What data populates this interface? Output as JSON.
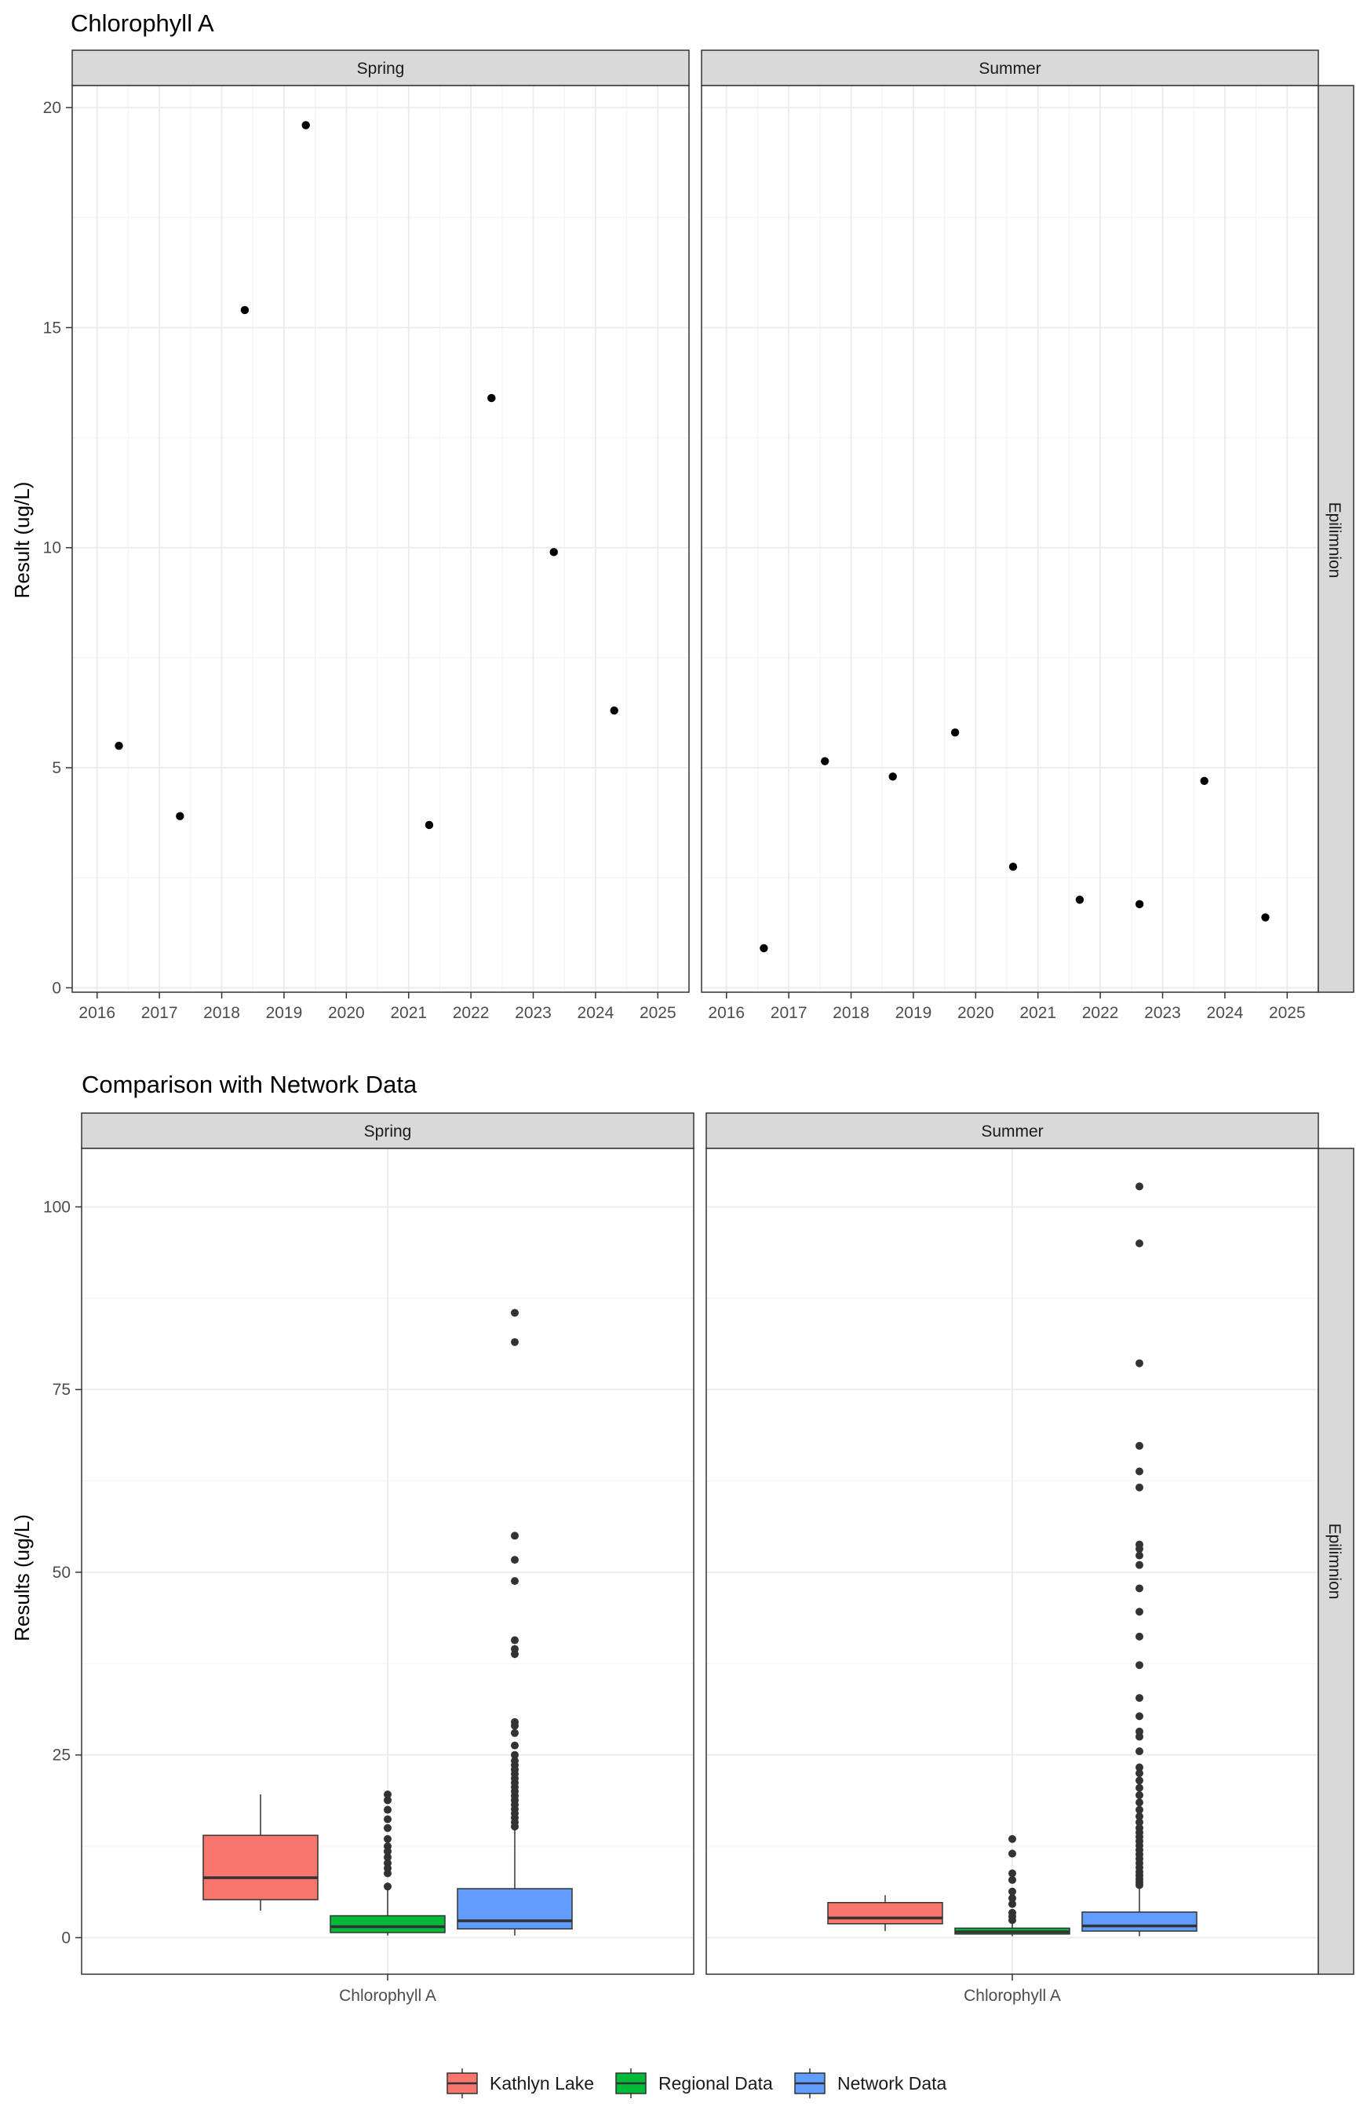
{
  "chart_data": [
    {
      "type": "scatter",
      "title": "Chlorophyll A",
      "ylabel": "Result (ug/L)",
      "xlabel": "",
      "x_ticks": [
        "2016",
        "2017",
        "2018",
        "2019",
        "2020",
        "2021",
        "2022",
        "2023",
        "2024",
        "2025"
      ],
      "xlim": [
        2015.6,
        2025.5
      ],
      "ylim": [
        -0.1,
        20.5
      ],
      "y_ticks": [
        0,
        5,
        10,
        15,
        20
      ],
      "grid": true,
      "facet_row": "Epilimnion",
      "panels": [
        {
          "facet": "Spring",
          "points": [
            {
              "x": 2016.35,
              "y": 5.5
            },
            {
              "x": 2017.33,
              "y": 3.9
            },
            {
              "x": 2018.37,
              "y": 15.4
            },
            {
              "x": 2019.35,
              "y": 19.6
            },
            {
              "x": 2021.33,
              "y": 3.7
            },
            {
              "x": 2022.33,
              "y": 13.4
            },
            {
              "x": 2023.33,
              "y": 9.9
            },
            {
              "x": 2024.3,
              "y": 6.3
            }
          ]
        },
        {
          "facet": "Summer",
          "points": [
            {
              "x": 2016.6,
              "y": 0.9
            },
            {
              "x": 2017.58,
              "y": 5.15
            },
            {
              "x": 2018.67,
              "y": 4.8
            },
            {
              "x": 2019.67,
              "y": 5.8
            },
            {
              "x": 2020.6,
              "y": 2.75
            },
            {
              "x": 2021.67,
              "y": 2.0
            },
            {
              "x": 2022.63,
              "y": 1.9
            },
            {
              "x": 2023.67,
              "y": 4.7
            },
            {
              "x": 2024.65,
              "y": 1.6
            }
          ]
        }
      ]
    },
    {
      "type": "box",
      "title": "Comparison with Network Data",
      "ylabel": "Results (ug/L)",
      "categories": [
        "Chlorophyll A"
      ],
      "ylim": [
        -5,
        108
      ],
      "y_ticks": [
        0,
        25,
        50,
        75,
        100
      ],
      "grid": true,
      "facet_row": "Epilimnion",
      "legend": {
        "position": "bottom",
        "entries": [
          {
            "name": "Kathlyn Lake",
            "color": "#F8766D"
          },
          {
            "name": "Regional Data",
            "color": "#00BA38"
          },
          {
            "name": "Network Data",
            "color": "#619CFF"
          }
        ]
      },
      "panels": [
        {
          "facet": "Spring",
          "boxes": [
            {
              "series": "Kathlyn Lake",
              "color": "#F8766D",
              "whisker_low": 3.7,
              "q1": 5.2,
              "median": 8.2,
              "q3": 14.0,
              "whisker_high": 19.6,
              "outliers": []
            },
            {
              "series": "Regional Data",
              "color": "#00BA38",
              "whisker_low": 0.3,
              "q1": 0.7,
              "median": 1.5,
              "q3": 3.0,
              "whisker_high": 6.5,
              "outliers": [
                7.0,
                8.8,
                9.5,
                10.2,
                11.0,
                11.8,
                12.5,
                13.5,
                15.0,
                16.2,
                17.5,
                18.8,
                19.6
              ]
            },
            {
              "series": "Network Data",
              "color": "#619CFF",
              "whisker_low": 0.3,
              "q1": 1.2,
              "median": 2.3,
              "q3": 6.7,
              "whisker_high": 15.0,
              "outliers": [
                15.2,
                15.8,
                16.4,
                17.0,
                17.6,
                18.2,
                18.8,
                19.4,
                20.0,
                20.6,
                21.2,
                21.8,
                22.4,
                23.0,
                23.6,
                24.2,
                25.0,
                26.3,
                28.0,
                29.0,
                29.5,
                38.8,
                39.5,
                40.7,
                48.8,
                51.7,
                55.0,
                81.5,
                85.5
              ]
            }
          ]
        },
        {
          "facet": "Summer",
          "boxes": [
            {
              "series": "Kathlyn Lake",
              "color": "#F8766D",
              "whisker_low": 0.9,
              "q1": 1.9,
              "median": 2.7,
              "q3": 4.8,
              "whisker_high": 5.8,
              "outliers": []
            },
            {
              "series": "Regional Data",
              "color": "#00BA38",
              "whisker_low": 0.2,
              "q1": 0.5,
              "median": 0.8,
              "q3": 1.3,
              "whisker_high": 2.0,
              "outliers": [
                2.4,
                2.9,
                3.4,
                4.6,
                5.4,
                6.3,
                7.9,
                8.8,
                11.5,
                13.5
              ]
            },
            {
              "series": "Network Data",
              "color": "#619CFF",
              "whisker_low": 0.2,
              "q1": 0.9,
              "median": 1.6,
              "q3": 3.5,
              "whisker_high": 7.0,
              "outliers": [
                7.2,
                7.6,
                8.0,
                8.5,
                9.0,
                9.6,
                10.2,
                10.8,
                11.4,
                12.0,
                12.6,
                13.2,
                13.8,
                14.4,
                15.0,
                15.8,
                16.6,
                17.5,
                18.5,
                19.5,
                20.5,
                21.5,
                22.5,
                23.3,
                25.5,
                27.5,
                28.2,
                30.3,
                32.8,
                37.3,
                41.2,
                44.6,
                47.8,
                51.0,
                52.3,
                53.2,
                53.8,
                61.6,
                63.8,
                67.3,
                78.6,
                95.0,
                102.8
              ]
            }
          ]
        }
      ]
    }
  ]
}
